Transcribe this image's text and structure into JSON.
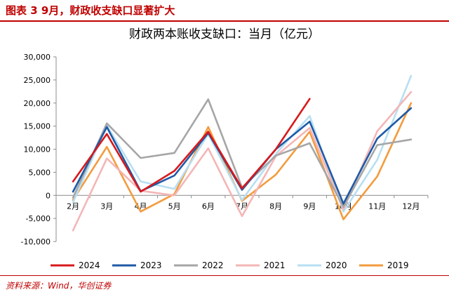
{
  "figure": {
    "title": "图表 3   9月，财政收支缺口显著扩大",
    "source": "资料来源：Wind，华创证券"
  },
  "chart_data": {
    "type": "line",
    "title": "财政两本账收支缺口：当月（亿元）",
    "categories": [
      "2月",
      "3月",
      "4月",
      "5月",
      "6月",
      "7月",
      "8月",
      "9月",
      "10月",
      "11月",
      "12月"
    ],
    "ylim": [
      -10000,
      30000
    ],
    "yticks": [
      -10000,
      -5000,
      0,
      5000,
      10000,
      15000,
      20000,
      25000,
      30000
    ],
    "ytick_labels": [
      "-10,000",
      "-5,000",
      "0",
      "5,000",
      "10,000",
      "15,000",
      "20,000",
      "25,000",
      "30,000"
    ],
    "grid": false,
    "legend": "bottom",
    "series": [
      {
        "name": "2024",
        "color": "#d7191c",
        "values": [
          3000,
          13300,
          800,
          5300,
          13800,
          1500,
          10000,
          20900,
          null,
          null,
          null
        ]
      },
      {
        "name": "2023",
        "color": "#1f5aa6",
        "values": [
          800,
          14800,
          900,
          4300,
          13500,
          1200,
          10000,
          16000,
          -1800,
          12300,
          18900
        ]
      },
      {
        "name": "2022",
        "color": "#a6a6a6",
        "values": [
          -500,
          15600,
          8100,
          9200,
          20800,
          1700,
          8600,
          11300,
          -2500,
          10900,
          12100
        ]
      },
      {
        "name": "2021",
        "color": "#f4b6b6",
        "values": [
          -7600,
          8000,
          1000,
          0,
          10200,
          -4500,
          8500,
          14600,
          -3000,
          13900,
          22400
        ]
      },
      {
        "name": "2020",
        "color": "#b7dff2",
        "values": [
          -1500,
          15100,
          3000,
          1400,
          13300,
          -1000,
          9000,
          17200,
          -3500,
          7700,
          25900
        ]
      },
      {
        "name": "2019",
        "color": "#f39b3d",
        "values": [
          -1000,
          10500,
          -3500,
          300,
          14800,
          -1200,
          4500,
          13800,
          -5200,
          4100,
          20000
        ]
      }
    ]
  }
}
